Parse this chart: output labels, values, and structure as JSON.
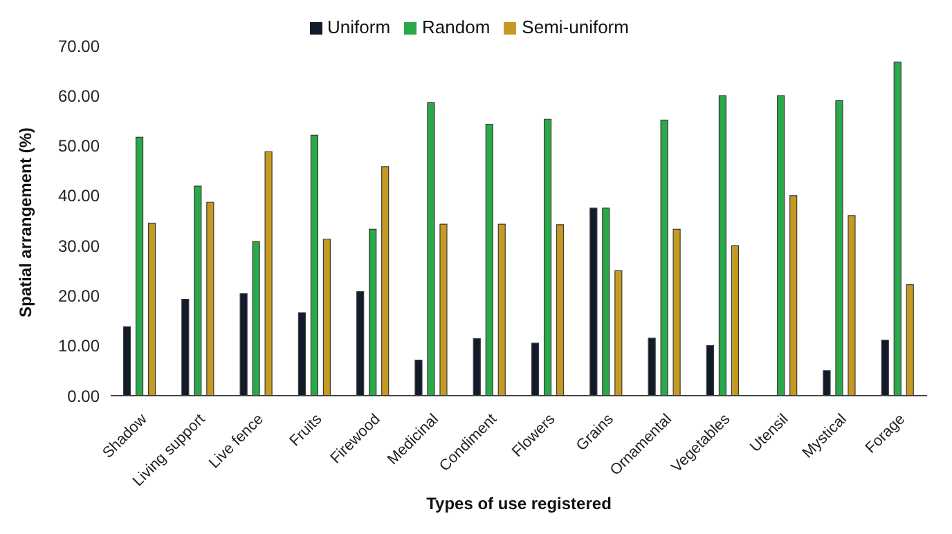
{
  "chart_data": {
    "type": "bar",
    "xlabel": "Types of use registered",
    "ylabel": "Spatial arrangement (%)",
    "categories": [
      "Shadow",
      "Living support",
      "Live fence",
      "Fruits",
      "Firewood",
      "Medicinal",
      "Condiment",
      "Flowers",
      "Grains",
      "Ornamental",
      "Vegetables",
      "Utensil",
      "Mystical",
      "Forage"
    ],
    "series": [
      {
        "name": "Uniform",
        "color": "#111b2a",
        "values": [
          13.8,
          19.3,
          20.4,
          16.6,
          20.8,
          7.1,
          11.4,
          10.5,
          37.5,
          11.5,
          10.0,
          0,
          5.0,
          11.1
        ]
      },
      {
        "name": "Random",
        "color": "#2aa84a",
        "values": [
          51.7,
          41.9,
          30.8,
          52.1,
          33.3,
          58.6,
          54.3,
          55.3,
          37.5,
          55.1,
          60.0,
          60.0,
          59.0,
          66.7
        ]
      },
      {
        "name": "Semi-uniform",
        "color": "#c49a22",
        "values": [
          34.5,
          38.7,
          48.8,
          31.3,
          45.8,
          34.3,
          34.3,
          34.2,
          25.0,
          33.3,
          30.0,
          40.0,
          36.0,
          22.2
        ]
      }
    ],
    "ylim": [
      0,
      70
    ],
    "yticks": [
      {
        "value": 0,
        "label": "0.00"
      },
      {
        "value": 10,
        "label": "10.00"
      },
      {
        "value": 20,
        "label": "20.00"
      },
      {
        "value": 30,
        "label": "30.00"
      },
      {
        "value": 40,
        "label": "40.00"
      },
      {
        "value": 50,
        "label": "50.00"
      },
      {
        "value": 60,
        "label": "60.00"
      },
      {
        "value": 70,
        "label": "70.00"
      }
    ],
    "grid": false,
    "legend": "top"
  }
}
